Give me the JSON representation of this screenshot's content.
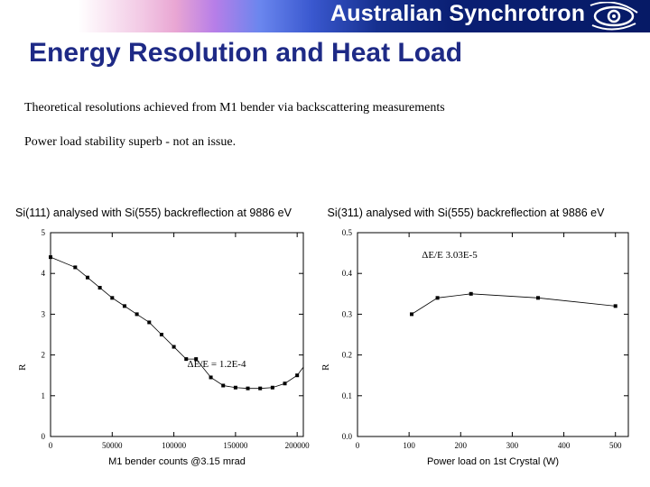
{
  "header": {
    "brand": "Australian Synchrotron",
    "logo_icon": "synchrotron-eye-logo-icon"
  },
  "slide": {
    "title": "Energy Resolution and Heat Load",
    "bullets": [
      "Theoretical resolutions achieved from M1 bender via backscattering measurements",
      "Power load stability superb - not an issue."
    ]
  },
  "chart_data": [
    {
      "type": "line",
      "title": "Si(111) analysed with Si(555) backreflection at 9886 eV",
      "xlabel": "M1 bender counts @3.15 mrad",
      "ylabel": "R",
      "xlim": [
        0,
        205000
      ],
      "ylim": [
        0,
        5
      ],
      "xticks": [
        "0",
        "50000",
        "100000",
        "150000",
        "200000"
      ],
      "yticks": [
        "0",
        "1",
        "2",
        "3",
        "4",
        "5"
      ],
      "annotation": "ΔE/E = 1.2E-4",
      "series": [
        {
          "x": [
            0,
            20000,
            30000,
            40000,
            50000,
            60000,
            70000,
            80000,
            90000,
            100000,
            110000,
            118000,
            130000,
            140000,
            150000,
            160000,
            170000,
            180000,
            190000,
            200000,
            205000
          ],
          "values": [
            4.4,
            4.15,
            3.9,
            3.65,
            3.4,
            3.2,
            3.0,
            2.8,
            2.5,
            2.2,
            1.9,
            1.9,
            1.45,
            1.25,
            1.2,
            1.18,
            1.18,
            1.2,
            1.3,
            1.5,
            1.7
          ]
        }
      ]
    },
    {
      "type": "line",
      "title": "Si(311) analysed with Si(555) backreflection at 9886 eV",
      "xlabel": "Power load on 1st Crystal (W)",
      "ylabel": "R",
      "xlim": [
        0,
        525
      ],
      "ylim": [
        0,
        0.5
      ],
      "xticks": [
        "0",
        "100",
        "200",
        "300",
        "400",
        "500"
      ],
      "yticks": [
        "0.0",
        "0.1",
        "0.2",
        "0.3",
        "0.4",
        "0.5"
      ],
      "annotation": "ΔE/E    3.03E-5",
      "series": [
        {
          "x": [
            105,
            155,
            220,
            350,
            500
          ],
          "values": [
            0.3,
            0.34,
            0.35,
            0.34,
            0.32
          ]
        }
      ]
    }
  ]
}
